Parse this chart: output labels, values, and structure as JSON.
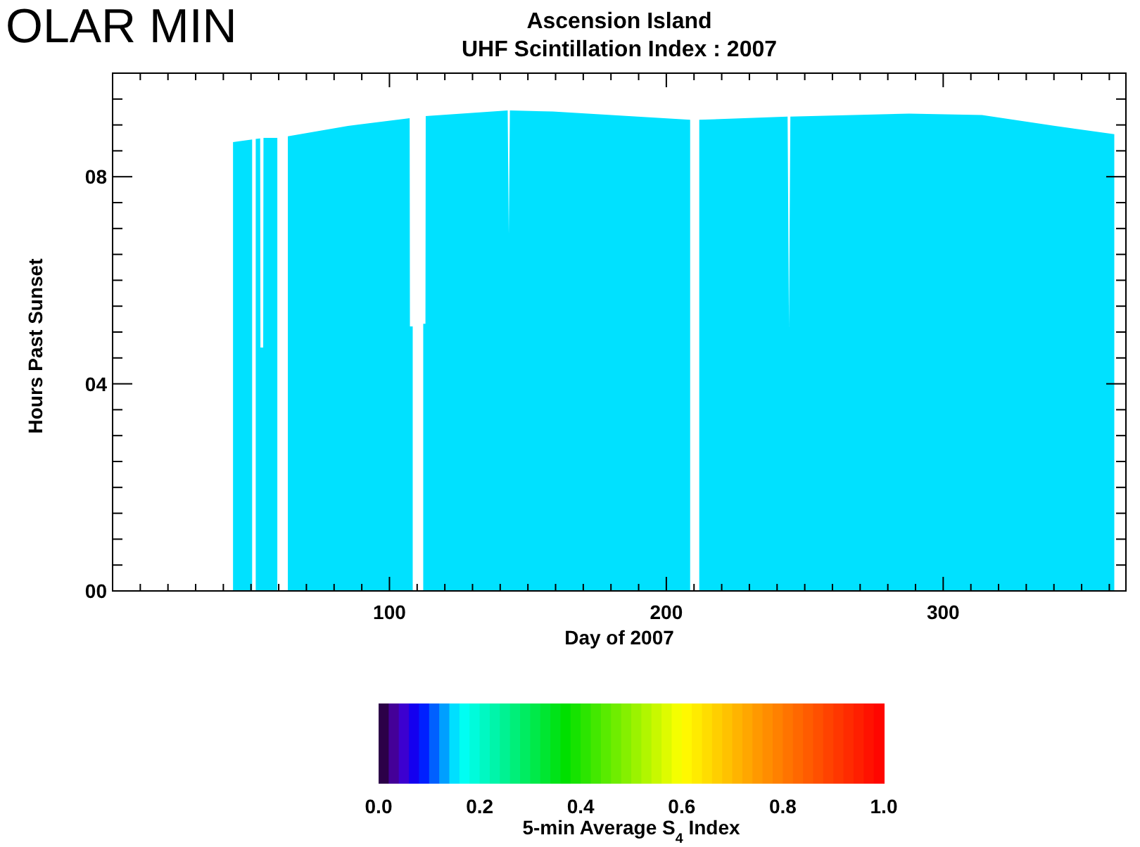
{
  "chart_data": {
    "type": "area",
    "title": "Ascension Island",
    "subtitle": "UHF Scintillation Index : 2007",
    "xlabel": "Day of 2007",
    "ylabel": "Hours Past Sunset",
    "clabel": "5-min Average S$_{4}$ Index",
    "annotations": [
      "OLAR MIN"
    ],
    "xlim": [
      0,
      366
    ],
    "xticks": [
      {
        "value": 10,
        "label": null
      },
      {
        "value": 20,
        "label": null
      },
      {
        "value": 30,
        "label": null
      },
      {
        "value": 40,
        "label": null
      },
      {
        "value": 50,
        "label": null
      },
      {
        "value": 60,
        "label": null
      },
      {
        "value": 70,
        "label": null
      },
      {
        "value": 80,
        "label": null
      },
      {
        "value": 90,
        "label": null
      },
      100,
      {
        "value": 110,
        "label": null
      },
      {
        "value": 120,
        "label": null
      },
      {
        "value": 130,
        "label": null
      },
      {
        "value": 140,
        "label": null
      },
      {
        "value": 150,
        "label": null
      },
      {
        "value": 160,
        "label": null
      },
      {
        "value": 170,
        "label": null
      },
      {
        "value": 180,
        "label": null
      },
      {
        "value": 190,
        "label": null
      },
      200,
      {
        "value": 210,
        "label": null
      },
      {
        "value": 220,
        "label": null
      },
      {
        "value": 230,
        "label": null
      },
      {
        "value": 240,
        "label": null
      },
      {
        "value": 250,
        "label": null
      },
      {
        "value": 260,
        "label": null
      },
      {
        "value": 270,
        "label": null
      },
      {
        "value": 280,
        "label": null
      },
      {
        "value": 290,
        "label": null
      },
      300,
      {
        "value": 310,
        "label": null
      },
      {
        "value": 320,
        "label": null
      },
      {
        "value": 330,
        "label": null
      },
      {
        "value": 340,
        "label": null
      },
      {
        "value": 350,
        "label": null
      },
      {
        "value": 360,
        "label": null
      }
    ],
    "ylim": [
      0,
      10
    ],
    "yticks": [
      {
        "value": 0,
        "label": "00"
      },
      {
        "value": 0.5,
        "label": null
      },
      {
        "value": 1,
        "label": null
      },
      {
        "value": 1.5,
        "label": null
      },
      {
        "value": 2,
        "label": null
      },
      {
        "value": 2.5,
        "label": null
      },
      {
        "value": 3,
        "label": null
      },
      {
        "value": 3.5,
        "label": null
      },
      {
        "value": 4,
        "label": "04"
      },
      {
        "value": 4.5,
        "label": null
      },
      {
        "value": 5,
        "label": null
      },
      {
        "value": 5.5,
        "label": null
      },
      {
        "value": 6,
        "label": null
      },
      {
        "value": 6.5,
        "label": null
      },
      {
        "value": 7,
        "label": null
      },
      {
        "value": 7.5,
        "label": null
      },
      {
        "value": 8,
        "label": "08"
      },
      {
        "value": 8.5,
        "label": null
      },
      {
        "value": 9,
        "label": null
      },
      {
        "value": 9.5,
        "label": null
      }
    ],
    "clim": [
      0,
      1
    ],
    "cticks": [
      {
        "value": 0,
        "label": "0.0"
      },
      {
        "value": 0.2,
        "label": "0.2"
      },
      {
        "value": 0.4,
        "label": "0.4"
      },
      {
        "value": 0.6,
        "label": "0.6"
      },
      {
        "value": 0.8,
        "label": "0.8"
      },
      {
        "value": 1,
        "label": "1.0"
      }
    ],
    "grid": false,
    "series": [
      {
        "x": [
          43.5,
          50.4,
          50.5,
          51.7,
          53.3,
          53.4,
          54.4,
          54.5,
          59.5,
          59.6,
          63.3,
          85,
          107.3,
          107.4,
          108.4,
          108.5,
          112.2,
          113.0,
          113.1,
          142.7,
          143.1,
          143.5,
          159,
          208.6,
          208.7,
          211.9,
          243.8,
          244.3,
          244.8,
          287.7,
          314,
          340.4,
          361.8
        ],
        "values": [
          8.67,
          8.72,
          null,
          8.73,
          8.74,
          4.7,
          4.7,
          8.75,
          8.75,
          null,
          8.78,
          8.98,
          9.13,
          5.11,
          5.11,
          null,
          5.16,
          5.16,
          9.17,
          9.28,
          6.88,
          9.28,
          9.26,
          9.1,
          null,
          9.1,
          9.16,
          5.11,
          9.16,
          9.22,
          9.19,
          8.98,
          8.82
        ],
        "color": "#00e1ff"
      }
    ]
  }
}
